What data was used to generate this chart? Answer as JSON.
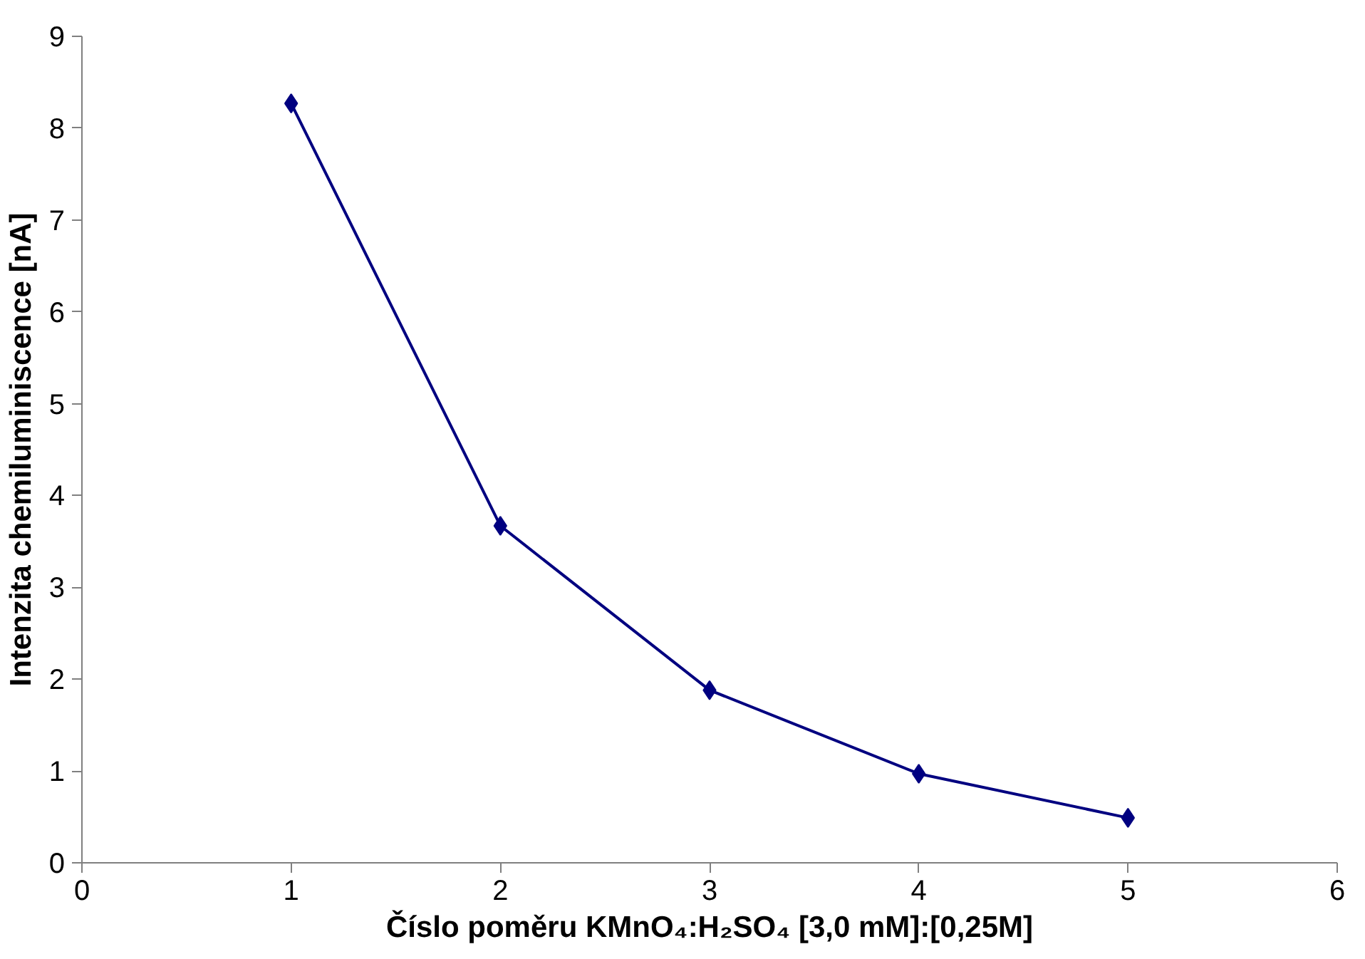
{
  "chart_data": {
    "type": "line",
    "xlabel": "Číslo poměru KMnO₄:H₂SO₄ [3,0 mM]:[0,25M]",
    "ylabel": "Intenzita chemiluminiscence [nA]",
    "x": [
      1,
      2,
      3,
      4,
      5
    ],
    "series": [
      {
        "color": "#000080",
        "values": [
          8.27,
          3.67,
          1.88,
          0.97,
          0.49
        ]
      }
    ],
    "xlim": [
      0,
      6
    ],
    "xticks": [
      0,
      1,
      2,
      3,
      4,
      5,
      6
    ],
    "ylim": [
      0,
      9
    ],
    "yticks": [
      0,
      1,
      2,
      3,
      4,
      5,
      6,
      7,
      8,
      9
    ],
    "marker": "diamond",
    "line_style": "solid",
    "grid": false
  }
}
